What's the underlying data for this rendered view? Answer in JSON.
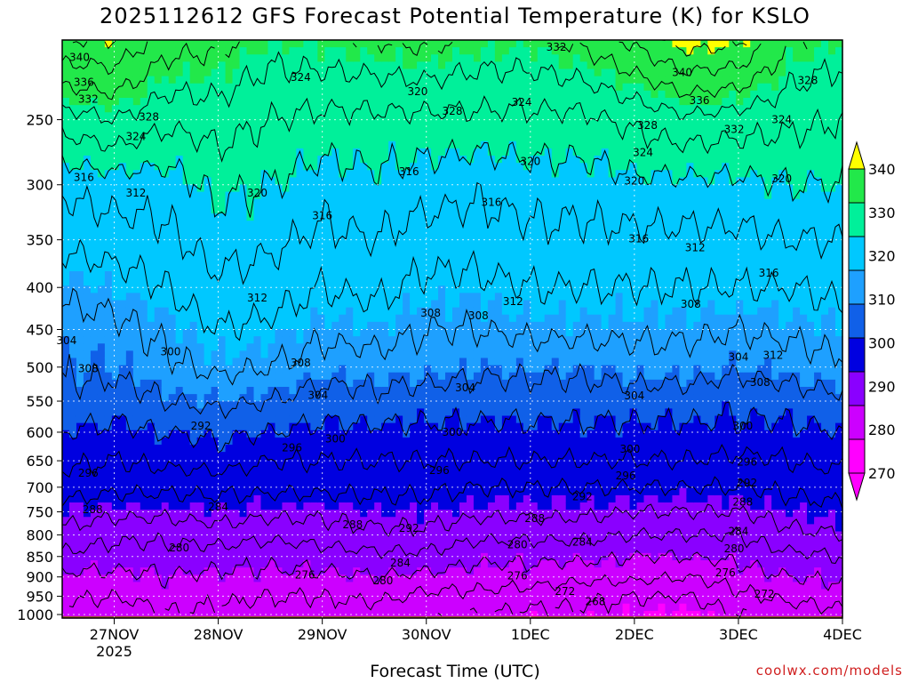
{
  "chart_data": {
    "type": "heatmap",
    "title": "2025112612 GFS Forecast Potential Temperature (K) for KSLO",
    "xlabel": "Forecast Time (UTC)",
    "ylabel": "",
    "x_ticks": [
      "27NOV",
      "28NOV",
      "29NOV",
      "30NOV",
      "1DEC",
      "2DEC",
      "3DEC",
      "4DEC"
    ],
    "x_tick_hours": [
      12,
      36,
      60,
      84,
      108,
      132,
      156,
      180
    ],
    "x_sublabel": "2025",
    "xlim_hours": [
      0,
      180
    ],
    "y_ticks": [
      250,
      300,
      350,
      400,
      450,
      500,
      550,
      600,
      650,
      700,
      750,
      800,
      850,
      900,
      950,
      1000
    ],
    "ylim_hPa": [
      200,
      1010
    ],
    "grid": true,
    "colorbar": {
      "position": "right",
      "levels": [
        270,
        280,
        290,
        300,
        310,
        320,
        330,
        340
      ],
      "colors": [
        "#ff00ff",
        "#cc00ff",
        "#8a00ff",
        "#0000e0",
        "#1060e8",
        "#1ea0ff",
        "#00c8ff",
        "#00f09a",
        "#22e84a",
        "#90f000",
        "#ffff00"
      ]
    },
    "profile_hours": [
      0,
      12,
      24,
      36,
      48,
      60,
      72,
      84,
      96,
      108,
      120,
      132,
      144,
      156,
      168,
      180
    ],
    "profile_pressure_hPa": [
      1000,
      950,
      900,
      850,
      800,
      750,
      700,
      650,
      600,
      550,
      500,
      450,
      400,
      350,
      300,
      250,
      200
    ],
    "theta_K": [
      [
        275,
        277,
        279,
        283,
        287,
        290,
        294,
        297,
        300,
        303,
        305,
        306,
        309,
        313,
        317,
        326,
        340
      ],
      [
        273,
        276,
        279,
        282,
        285,
        289,
        293,
        296,
        299,
        302,
        305,
        307,
        310,
        314,
        318,
        328,
        340
      ],
      [
        276,
        278,
        280,
        282,
        285,
        289,
        293,
        297,
        300,
        304,
        307,
        309,
        312,
        315,
        318,
        325,
        334
      ],
      [
        275,
        277,
        279,
        282,
        286,
        290,
        293,
        298,
        301,
        305,
        309,
        312,
        315,
        318,
        321,
        326,
        333
      ],
      [
        274,
        276,
        279,
        281,
        285,
        289,
        293,
        296,
        300,
        304,
        308,
        311,
        314,
        317,
        320,
        324,
        330
      ],
      [
        274,
        276,
        279,
        282,
        286,
        289,
        293,
        296,
        299,
        302,
        306,
        309,
        312,
        315,
        318,
        323,
        331
      ],
      [
        274,
        277,
        280,
        283,
        287,
        290,
        293,
        296,
        299,
        303,
        306,
        310,
        313,
        316,
        319,
        323,
        332
      ],
      [
        273,
        275,
        279,
        283,
        287,
        290,
        293,
        296,
        299,
        302,
        306,
        308,
        311,
        314,
        318,
        323,
        333
      ],
      [
        272,
        275,
        278,
        281,
        285,
        289,
        292,
        296,
        299,
        302,
        305,
        308,
        311,
        314,
        317,
        323,
        331
      ],
      [
        271,
        274,
        278,
        281,
        285,
        289,
        292,
        296,
        299,
        302,
        305,
        309,
        312,
        315,
        318,
        323,
        331
      ],
      [
        271,
        273,
        277,
        281,
        285,
        289,
        292,
        296,
        299,
        302,
        305,
        309,
        312,
        315,
        318,
        323,
        333
      ],
      [
        270,
        272,
        277,
        280,
        284,
        288,
        292,
        296,
        299,
        302,
        306,
        309,
        312,
        315,
        319,
        325,
        337
      ],
      [
        269,
        272,
        276,
        280,
        284,
        288,
        292,
        296,
        299,
        302,
        306,
        309,
        312,
        315,
        319,
        327,
        342
      ],
      [
        272,
        275,
        278,
        281,
        284,
        288,
        292,
        295,
        299,
        301,
        305,
        308,
        312,
        315,
        319,
        326,
        341
      ],
      [
        274,
        277,
        280,
        283,
        287,
        290,
        293,
        296,
        299,
        302,
        306,
        309,
        312,
        316,
        320,
        325,
        332
      ],
      [
        275,
        278,
        281,
        284,
        288,
        291,
        294,
        297,
        300,
        303,
        307,
        310,
        313,
        316,
        320,
        324,
        330
      ]
    ],
    "contour_labels": [
      {
        "value": "340",
        "hour": 4,
        "pres": 210
      },
      {
        "value": "336",
        "hour": 5,
        "pres": 225
      },
      {
        "value": "332",
        "hour": 6,
        "pres": 236
      },
      {
        "value": "328",
        "hour": 20,
        "pres": 248
      },
      {
        "value": "324",
        "hour": 17,
        "pres": 262
      },
      {
        "value": "316",
        "hour": 5,
        "pres": 294
      },
      {
        "value": "312",
        "hour": 17,
        "pres": 307
      },
      {
        "value": "320",
        "hour": 45,
        "pres": 307
      },
      {
        "value": "324",
        "hour": 55,
        "pres": 222
      },
      {
        "value": "320",
        "hour": 82,
        "pres": 231
      },
      {
        "value": "328",
        "hour": 90,
        "pres": 244
      },
      {
        "value": "316",
        "hour": 80,
        "pres": 289
      },
      {
        "value": "316",
        "hour": 60,
        "pres": 327
      },
      {
        "value": "312",
        "hour": 45,
        "pres": 412
      },
      {
        "value": "304",
        "hour": 1,
        "pres": 464
      },
      {
        "value": "308",
        "hour": 6,
        "pres": 502
      },
      {
        "value": "300",
        "hour": 25,
        "pres": 479
      },
      {
        "value": "292",
        "hour": 32,
        "pres": 590
      },
      {
        "value": "296",
        "hour": 6,
        "pres": 673
      },
      {
        "value": "288",
        "hour": 7,
        "pres": 745
      },
      {
        "value": "284",
        "hour": 36,
        "pres": 740
      },
      {
        "value": "280",
        "hour": 27,
        "pres": 830
      },
      {
        "value": "308",
        "hour": 55,
        "pres": 494
      },
      {
        "value": "304",
        "hour": 59,
        "pres": 541
      },
      {
        "value": "300",
        "hour": 63,
        "pres": 611
      },
      {
        "value": "296",
        "hour": 53,
        "pres": 627
      },
      {
        "value": "288",
        "hour": 67,
        "pres": 778
      },
      {
        "value": "292",
        "hour": 80,
        "pres": 785
      },
      {
        "value": "284",
        "hour": 78,
        "pres": 865
      },
      {
        "value": "280",
        "hour": 74,
        "pres": 910
      },
      {
        "value": "276",
        "hour": 56,
        "pres": 895
      },
      {
        "value": "308",
        "hour": 85,
        "pres": 430
      },
      {
        "value": "308",
        "hour": 96,
        "pres": 433
      },
      {
        "value": "304",
        "hour": 93,
        "pres": 530
      },
      {
        "value": "300",
        "hour": 90,
        "pres": 600
      },
      {
        "value": "296",
        "hour": 87,
        "pres": 668
      },
      {
        "value": "312",
        "hour": 104,
        "pres": 416
      },
      {
        "value": "316",
        "hour": 99,
        "pres": 315
      },
      {
        "value": "320",
        "hour": 108,
        "pres": 281
      },
      {
        "value": "324",
        "hour": 106,
        "pres": 238
      },
      {
        "value": "332",
        "hour": 114,
        "pres": 204
      },
      {
        "value": "288",
        "hour": 109,
        "pres": 764
      },
      {
        "value": "284",
        "hour": 120,
        "pres": 816
      },
      {
        "value": "280",
        "hour": 105,
        "pres": 822
      },
      {
        "value": "276",
        "hour": 105,
        "pres": 897
      },
      {
        "value": "272",
        "hour": 116,
        "pres": 937
      },
      {
        "value": "268",
        "hour": 123,
        "pres": 965
      },
      {
        "value": "292",
        "hour": 120,
        "pres": 719
      },
      {
        "value": "304",
        "hour": 132,
        "pres": 542
      },
      {
        "value": "300",
        "hour": 131,
        "pres": 629
      },
      {
        "value": "296",
        "hour": 130,
        "pres": 678
      },
      {
        "value": "320",
        "hour": 132,
        "pres": 297
      },
      {
        "value": "316",
        "hour": 133,
        "pres": 349
      },
      {
        "value": "312",
        "hour": 146,
        "pres": 358
      },
      {
        "value": "308",
        "hour": 145,
        "pres": 419
      },
      {
        "value": "324",
        "hour": 134,
        "pres": 274
      },
      {
        "value": "328",
        "hour": 135,
        "pres": 254
      },
      {
        "value": "340",
        "hour": 143,
        "pres": 219
      },
      {
        "value": "336",
        "hour": 147,
        "pres": 237
      },
      {
        "value": "332",
        "hour": 155,
        "pres": 257
      },
      {
        "value": "304",
        "hour": 156,
        "pres": 486
      },
      {
        "value": "300",
        "hour": 157,
        "pres": 590
      },
      {
        "value": "296",
        "hour": 158,
        "pres": 652
      },
      {
        "value": "292",
        "hour": 158,
        "pres": 692
      },
      {
        "value": "288",
        "hour": 157,
        "pres": 730
      },
      {
        "value": "284",
        "hour": 156,
        "pres": 792
      },
      {
        "value": "280",
        "hour": 155,
        "pres": 832
      },
      {
        "value": "276",
        "hour": 153,
        "pres": 890
      },
      {
        "value": "272",
        "hour": 162,
        "pres": 944
      },
      {
        "value": "312",
        "hour": 164,
        "pres": 484
      },
      {
        "value": "308",
        "hour": 161,
        "pres": 522
      },
      {
        "value": "316",
        "hour": 163,
        "pres": 384
      },
      {
        "value": "320",
        "hour": 166,
        "pres": 295
      },
      {
        "value": "324",
        "hour": 166,
        "pres": 250
      },
      {
        "value": "328",
        "hour": 172,
        "pres": 224
      }
    ]
  },
  "credit": "coolwx.com/models"
}
